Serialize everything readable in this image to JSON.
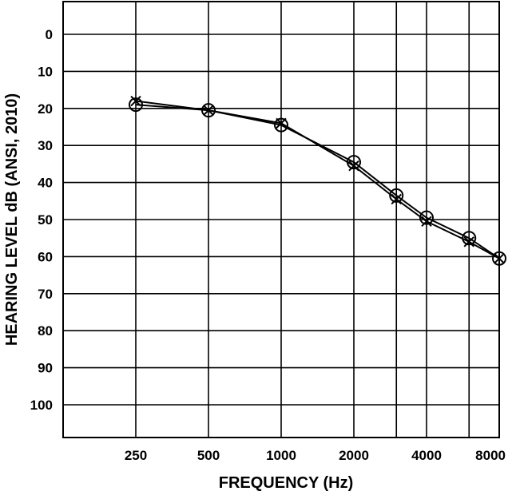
{
  "chart_data": {
    "type": "line",
    "title": "",
    "xlabel": "FREQUENCY (Hz)",
    "ylabel": "HEARING LEVEL dB (ANSI, 2010)",
    "x_scale": "log",
    "x": [
      250,
      500,
      1000,
      2000,
      3000,
      4000,
      6000,
      8000
    ],
    "x_tick_labels": [
      "250",
      "500",
      "1000",
      "2000",
      "",
      "4000",
      "",
      "8000"
    ],
    "ylim": [
      110,
      -10
    ],
    "y_ticks": [
      0,
      10,
      20,
      30,
      40,
      50,
      60,
      70,
      80,
      90,
      100
    ],
    "y_tick_labels": [
      "0",
      "10",
      "20",
      "30",
      "40",
      "50",
      "60",
      "70",
      "80",
      "90",
      "100"
    ],
    "grid": true,
    "series": [
      {
        "marker": "circle",
        "values": [
          19,
          20.5,
          24.5,
          34.5,
          43.5,
          49.5,
          55,
          60.5
        ]
      },
      {
        "marker": "x",
        "values": [
          18,
          20.5,
          24,
          35.5,
          44.5,
          50.5,
          56,
          60.5
        ]
      }
    ],
    "colors": {
      "line": "#000000",
      "grid": "#000000",
      "background": "#ffffff"
    }
  }
}
